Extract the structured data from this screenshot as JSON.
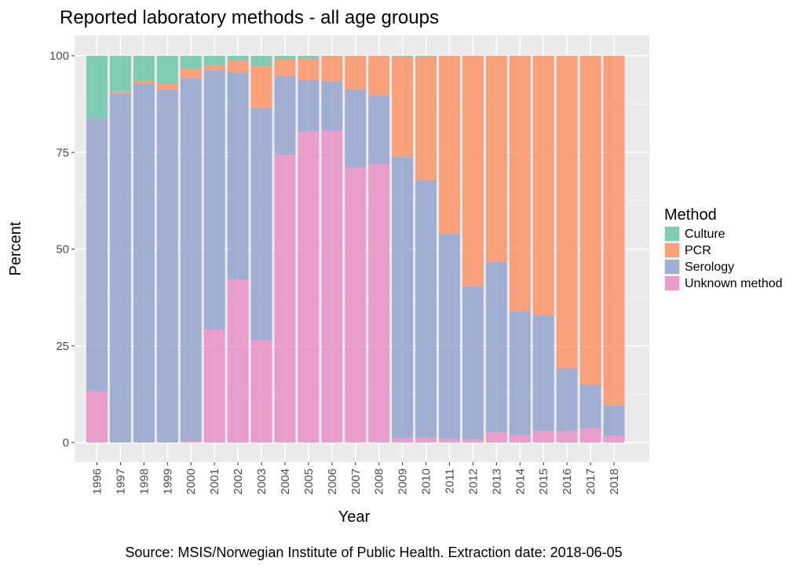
{
  "colors": {
    "panel": "#EBEBEB",
    "grid_major": "#FFFFFF",
    "grid_minor": "#F5F5F5",
    "tick_text": "#4D4D4D",
    "text": "#000000"
  },
  "chart_data": {
    "type": "bar",
    "stacked": true,
    "title": "Reported laboratory methods - all age groups",
    "xlabel": "Year",
    "ylabel": "Percent",
    "ylim": [
      0,
      100
    ],
    "yticks": [
      0,
      25,
      50,
      75,
      100
    ],
    "legend": {
      "title": "Method",
      "position": "right"
    },
    "caption": "Source: MSIS/Norwegian Institute of Public Health. Extraction date: 2018-06-05",
    "categories": [
      "1996",
      "1997",
      "1998",
      "1999",
      "2000",
      "2001",
      "2002",
      "2003",
      "2004",
      "2005",
      "2006",
      "2007",
      "2008",
      "2009",
      "2010",
      "2011",
      "2012",
      "2013",
      "2014",
      "2015",
      "2016",
      "2017",
      "2018"
    ],
    "series": [
      {
        "name": "Culture",
        "color": "#66C2A5",
        "values": [
          16.2,
          9.3,
          6.5,
          7.2,
          3.4,
          2.5,
          1.2,
          2.7,
          0.9,
          0.8,
          0.2,
          0,
          0,
          0.3,
          0.3,
          0,
          0,
          0,
          0,
          0,
          0,
          0,
          0
        ]
      },
      {
        "name": "PCR",
        "color": "#FC8D62",
        "values": [
          0,
          0.4,
          0.8,
          1.5,
          2.4,
          1.2,
          3.1,
          10.8,
          4.4,
          5.5,
          6.5,
          8.7,
          10.2,
          25.9,
          31.9,
          46.0,
          59.6,
          53.3,
          66.0,
          67.1,
          80.8,
          85.1,
          90.4
        ]
      },
      {
        "name": "Serology",
        "color": "#8DA0CB",
        "values": [
          70.5,
          90.3,
          92.7,
          91.3,
          93.8,
          67.1,
          53.5,
          60.0,
          20.3,
          13.3,
          12.6,
          20.1,
          17.8,
          72.6,
          66.5,
          53.1,
          39.6,
          44.1,
          32.1,
          29.9,
          16.3,
          11.2,
          7.8
        ]
      },
      {
        "name": "Unknown method",
        "color": "#E78AC3",
        "values": [
          13.3,
          0,
          0,
          0,
          0.4,
          29.2,
          42.2,
          26.5,
          74.4,
          80.4,
          80.7,
          71.2,
          72.0,
          1.2,
          1.3,
          0.9,
          0.8,
          2.6,
          1.9,
          3.0,
          2.9,
          3.7,
          1.8
        ]
      }
    ]
  }
}
